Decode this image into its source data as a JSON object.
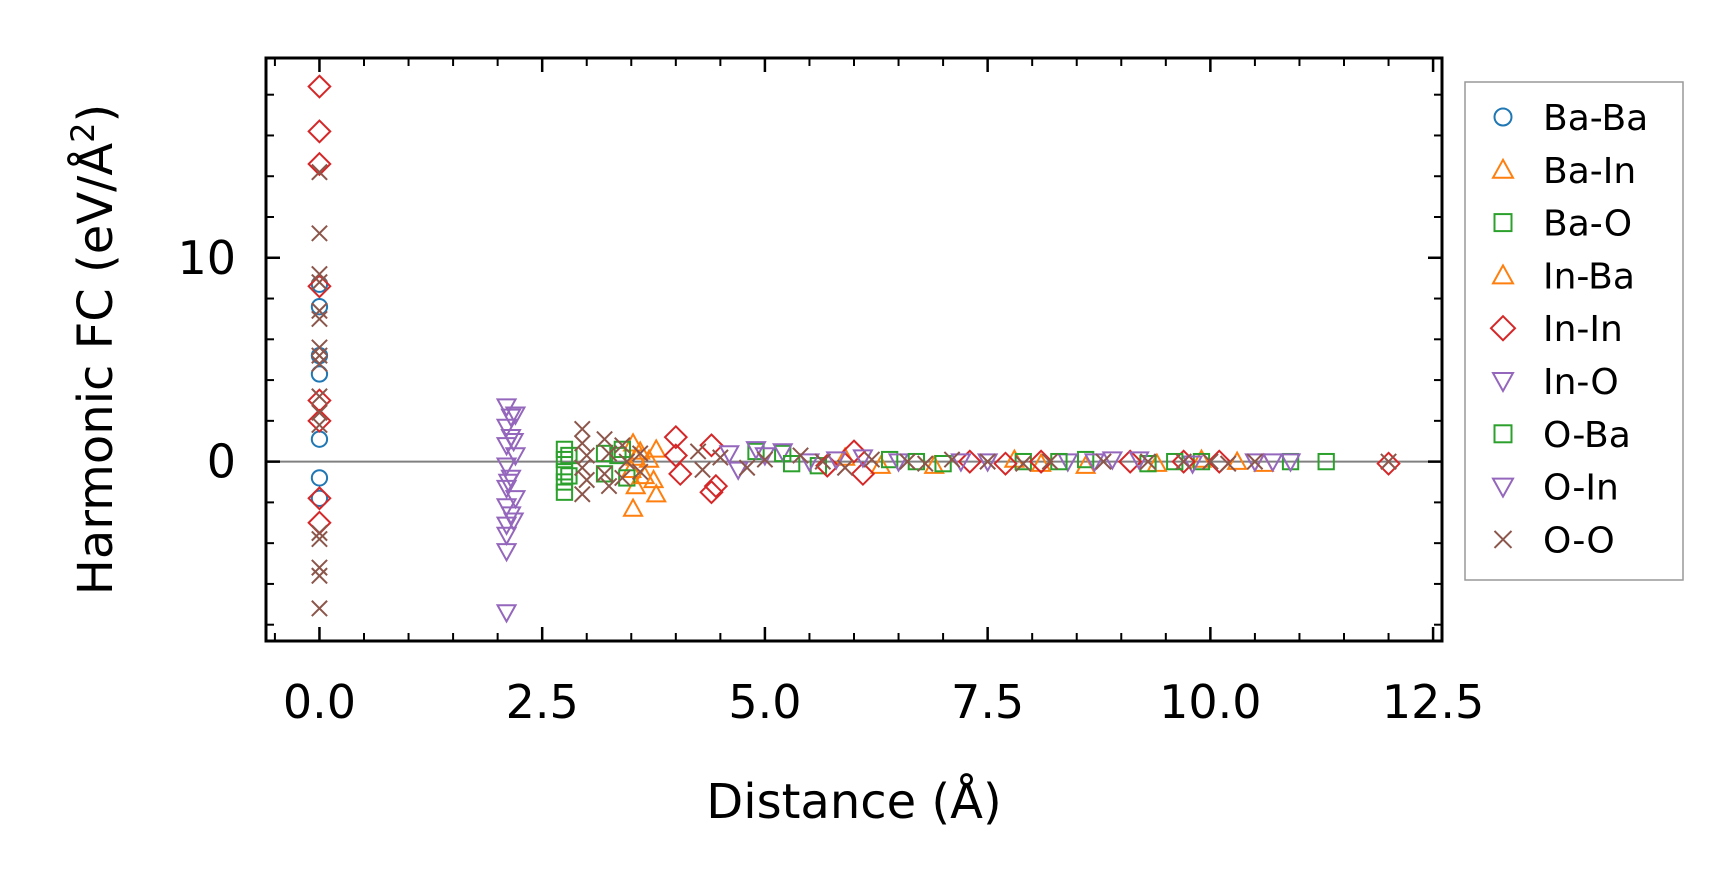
{
  "chart_data": {
    "type": "scatter",
    "title": "",
    "xlabel": "Distance (Å)",
    "ylabel_main": "Harmonic FC (eV/Å",
    "ylabel_sup": "2",
    "ylabel_close": ")",
    "xlim": [
      -0.6,
      12.6
    ],
    "ylim": [
      -8.8,
      19.8
    ],
    "x_ticks": [
      0.0,
      2.5,
      5.0,
      7.5,
      10.0,
      12.5
    ],
    "x_tick_labels": [
      "0.0",
      "2.5",
      "5.0",
      "7.5",
      "10.0",
      "12.5"
    ],
    "y_ticks": [
      0,
      10
    ],
    "y_tick_labels": [
      "0",
      "10"
    ],
    "x_minor_step": 0.5,
    "y_minor_step": 2,
    "zero_line": true,
    "grid": false,
    "legend_position": "outside-right",
    "series": [
      {
        "name": "Ba-Ba",
        "marker": "circle",
        "color": "#1f77b4",
        "points": [
          [
            0,
            8.7
          ],
          [
            0,
            7.6
          ],
          [
            0,
            5.2
          ],
          [
            0,
            4.3
          ],
          [
            0,
            1.1
          ],
          [
            0,
            -0.8
          ],
          [
            0,
            -1.8
          ]
        ]
      },
      {
        "name": "Ba-In",
        "marker": "triangle-up",
        "color": "#ff7f0e",
        "points": [
          [
            3.52,
            0.9
          ],
          [
            3.55,
            0.2
          ],
          [
            3.5,
            -0.4
          ],
          [
            3.55,
            -1.2
          ],
          [
            3.52,
            -2.3
          ],
          [
            3.78,
            0.6
          ],
          [
            3.75,
            -0.9
          ],
          [
            3.78,
            -1.6
          ],
          [
            6.3,
            -0.2
          ],
          [
            6.9,
            -0.2
          ],
          [
            7.8,
            0.1
          ],
          [
            8.6,
            -0.2
          ],
          [
            9.4,
            -0.1
          ],
          [
            9.9,
            0.1
          ],
          [
            10.6,
            -0.1
          ]
        ]
      },
      {
        "name": "Ba-O",
        "marker": "square",
        "color": "#2ca02c",
        "points": [
          [
            2.75,
            0.6
          ],
          [
            2.75,
            0.1
          ],
          [
            2.75,
            -0.5
          ],
          [
            2.75,
            -1.0
          ],
          [
            2.75,
            -1.5
          ],
          [
            3.2,
            0.4
          ],
          [
            3.2,
            -0.6
          ],
          [
            3.4,
            0.6
          ],
          [
            3.45,
            -0.8
          ],
          [
            4.9,
            0.5
          ],
          [
            5.2,
            0.4
          ],
          [
            5.6,
            -0.2
          ],
          [
            6.4,
            0.1
          ],
          [
            7.0,
            -0.1
          ],
          [
            7.9,
            0.0
          ],
          [
            8.6,
            0.1
          ],
          [
            9.3,
            -0.1
          ],
          [
            9.9,
            0.0
          ],
          [
            10.9,
            0.0
          ],
          [
            11.3,
            0.0
          ]
        ]
      },
      {
        "name": "In-Ba",
        "marker": "triangle-up",
        "color": "#ff7f0e",
        "points": [
          [
            3.6,
            0.5
          ],
          [
            3.65,
            -0.7
          ],
          [
            3.7,
            0.1
          ],
          [
            5.9,
            0.2
          ],
          [
            8.1,
            -0.1
          ],
          [
            10.3,
            0.0
          ]
        ]
      },
      {
        "name": "In-In",
        "marker": "diamond",
        "color": "#d62728",
        "points": [
          [
            0,
            18.4
          ],
          [
            0,
            16.2
          ],
          [
            0,
            14.6
          ],
          [
            0,
            8.6
          ],
          [
            0,
            3.0
          ],
          [
            0,
            2.0
          ],
          [
            0,
            -1.8
          ],
          [
            0,
            -3.0
          ],
          [
            4.0,
            1.2
          ],
          [
            4.0,
            0.3
          ],
          [
            4.05,
            -0.6
          ],
          [
            4.4,
            0.8
          ],
          [
            4.45,
            -1.2
          ],
          [
            4.4,
            -1.5
          ],
          [
            5.7,
            -0.2
          ],
          [
            6.0,
            0.5
          ],
          [
            6.1,
            -0.6
          ],
          [
            7.3,
            0.0
          ],
          [
            7.7,
            -0.1
          ],
          [
            8.1,
            0.0
          ],
          [
            9.1,
            0.0
          ],
          [
            9.7,
            0.0
          ],
          [
            10.1,
            0.0
          ],
          [
            12.0,
            -0.1
          ]
        ]
      },
      {
        "name": "In-O",
        "marker": "triangle-down",
        "color": "#9467bd",
        "points": [
          [
            2.1,
            2.7
          ],
          [
            2.15,
            2.2
          ],
          [
            2.1,
            1.7
          ],
          [
            2.15,
            1.2
          ],
          [
            2.1,
            0.8
          ],
          [
            2.2,
            0.3
          ],
          [
            2.1,
            -0.2
          ],
          [
            2.15,
            -0.8
          ],
          [
            2.1,
            -1.3
          ],
          [
            2.2,
            -1.8
          ],
          [
            2.1,
            -2.2
          ],
          [
            2.15,
            -2.6
          ],
          [
            2.1,
            -3.1
          ],
          [
            2.1,
            -3.6
          ],
          [
            2.1,
            -4.4
          ],
          [
            2.1,
            -7.4
          ],
          [
            4.6,
            0.4
          ],
          [
            4.9,
            0.6
          ],
          [
            5.2,
            0.5
          ],
          [
            5.8,
            0.1
          ],
          [
            6.5,
            0.0
          ],
          [
            7.2,
            0.0
          ],
          [
            8.4,
            0.0
          ],
          [
            8.9,
            0.1
          ],
          [
            9.8,
            -0.1
          ],
          [
            10.5,
            0.0
          ],
          [
            10.9,
            0.0
          ]
        ]
      },
      {
        "name": "O-Ba",
        "marker": "square",
        "color": "#2ca02c",
        "points": [
          [
            2.8,
            0.3
          ],
          [
            2.8,
            -0.7
          ],
          [
            3.35,
            0.3
          ],
          [
            5.3,
            -0.1
          ],
          [
            6.7,
            0.0
          ],
          [
            8.3,
            0.0
          ],
          [
            9.6,
            0.0
          ]
        ]
      },
      {
        "name": "O-In",
        "marker": "triangle-down",
        "color": "#9467bd",
        "points": [
          [
            2.2,
            2.3
          ],
          [
            2.18,
            1.0
          ],
          [
            2.12,
            -1.0
          ],
          [
            2.18,
            -2.9
          ],
          [
            4.7,
            -0.4
          ],
          [
            5.0,
            0.3
          ],
          [
            5.5,
            0.0
          ],
          [
            6.1,
            0.2
          ],
          [
            7.5,
            0.0
          ],
          [
            8.7,
            0.0
          ],
          [
            9.2,
            0.1
          ],
          [
            10.7,
            0.0
          ]
        ]
      },
      {
        "name": "O-O",
        "marker": "x",
        "color": "#8c564b",
        "points": [
          [
            0,
            14.2
          ],
          [
            0,
            11.2
          ],
          [
            0,
            9.2
          ],
          [
            0,
            8.8
          ],
          [
            0,
            7.4
          ],
          [
            0,
            7.0
          ],
          [
            0,
            5.6
          ],
          [
            0,
            5.2
          ],
          [
            0,
            4.8
          ],
          [
            0,
            3.2
          ],
          [
            0,
            2.4
          ],
          [
            0,
            1.8
          ],
          [
            0,
            -3.5
          ],
          [
            0,
            -3.8
          ],
          [
            0,
            -5.2
          ],
          [
            0,
            -5.6
          ],
          [
            0,
            -7.2
          ],
          [
            2.95,
            1.6
          ],
          [
            2.95,
            0.9
          ],
          [
            3.0,
            0.3
          ],
          [
            2.95,
            -0.3
          ],
          [
            3.0,
            -0.9
          ],
          [
            2.95,
            -1.6
          ],
          [
            3.2,
            1.1
          ],
          [
            3.25,
            0.4
          ],
          [
            3.2,
            -0.6
          ],
          [
            3.25,
            -1.2
          ],
          [
            3.4,
            0.8
          ],
          [
            3.45,
            0.0
          ],
          [
            3.4,
            -0.8
          ],
          [
            3.6,
            0.4
          ],
          [
            3.6,
            -0.5
          ],
          [
            4.25,
            0.5
          ],
          [
            4.3,
            -0.4
          ],
          [
            4.5,
            0.2
          ],
          [
            4.8,
            -0.3
          ],
          [
            5.0,
            0.1
          ],
          [
            5.4,
            0.3
          ],
          [
            5.65,
            0.0
          ],
          [
            5.9,
            -0.3
          ],
          [
            6.2,
            0.1
          ],
          [
            6.6,
            0.0
          ],
          [
            6.8,
            -0.1
          ],
          [
            7.1,
            0.1
          ],
          [
            7.5,
            0.0
          ],
          [
            7.9,
            -0.1
          ],
          [
            8.2,
            0.0
          ],
          [
            8.8,
            0.0
          ],
          [
            9.3,
            0.0
          ],
          [
            9.7,
            0.0
          ],
          [
            10.0,
            0.0
          ],
          [
            10.2,
            -0.1
          ],
          [
            10.5,
            0.0
          ],
          [
            12.0,
            0.0
          ]
        ]
      }
    ]
  }
}
